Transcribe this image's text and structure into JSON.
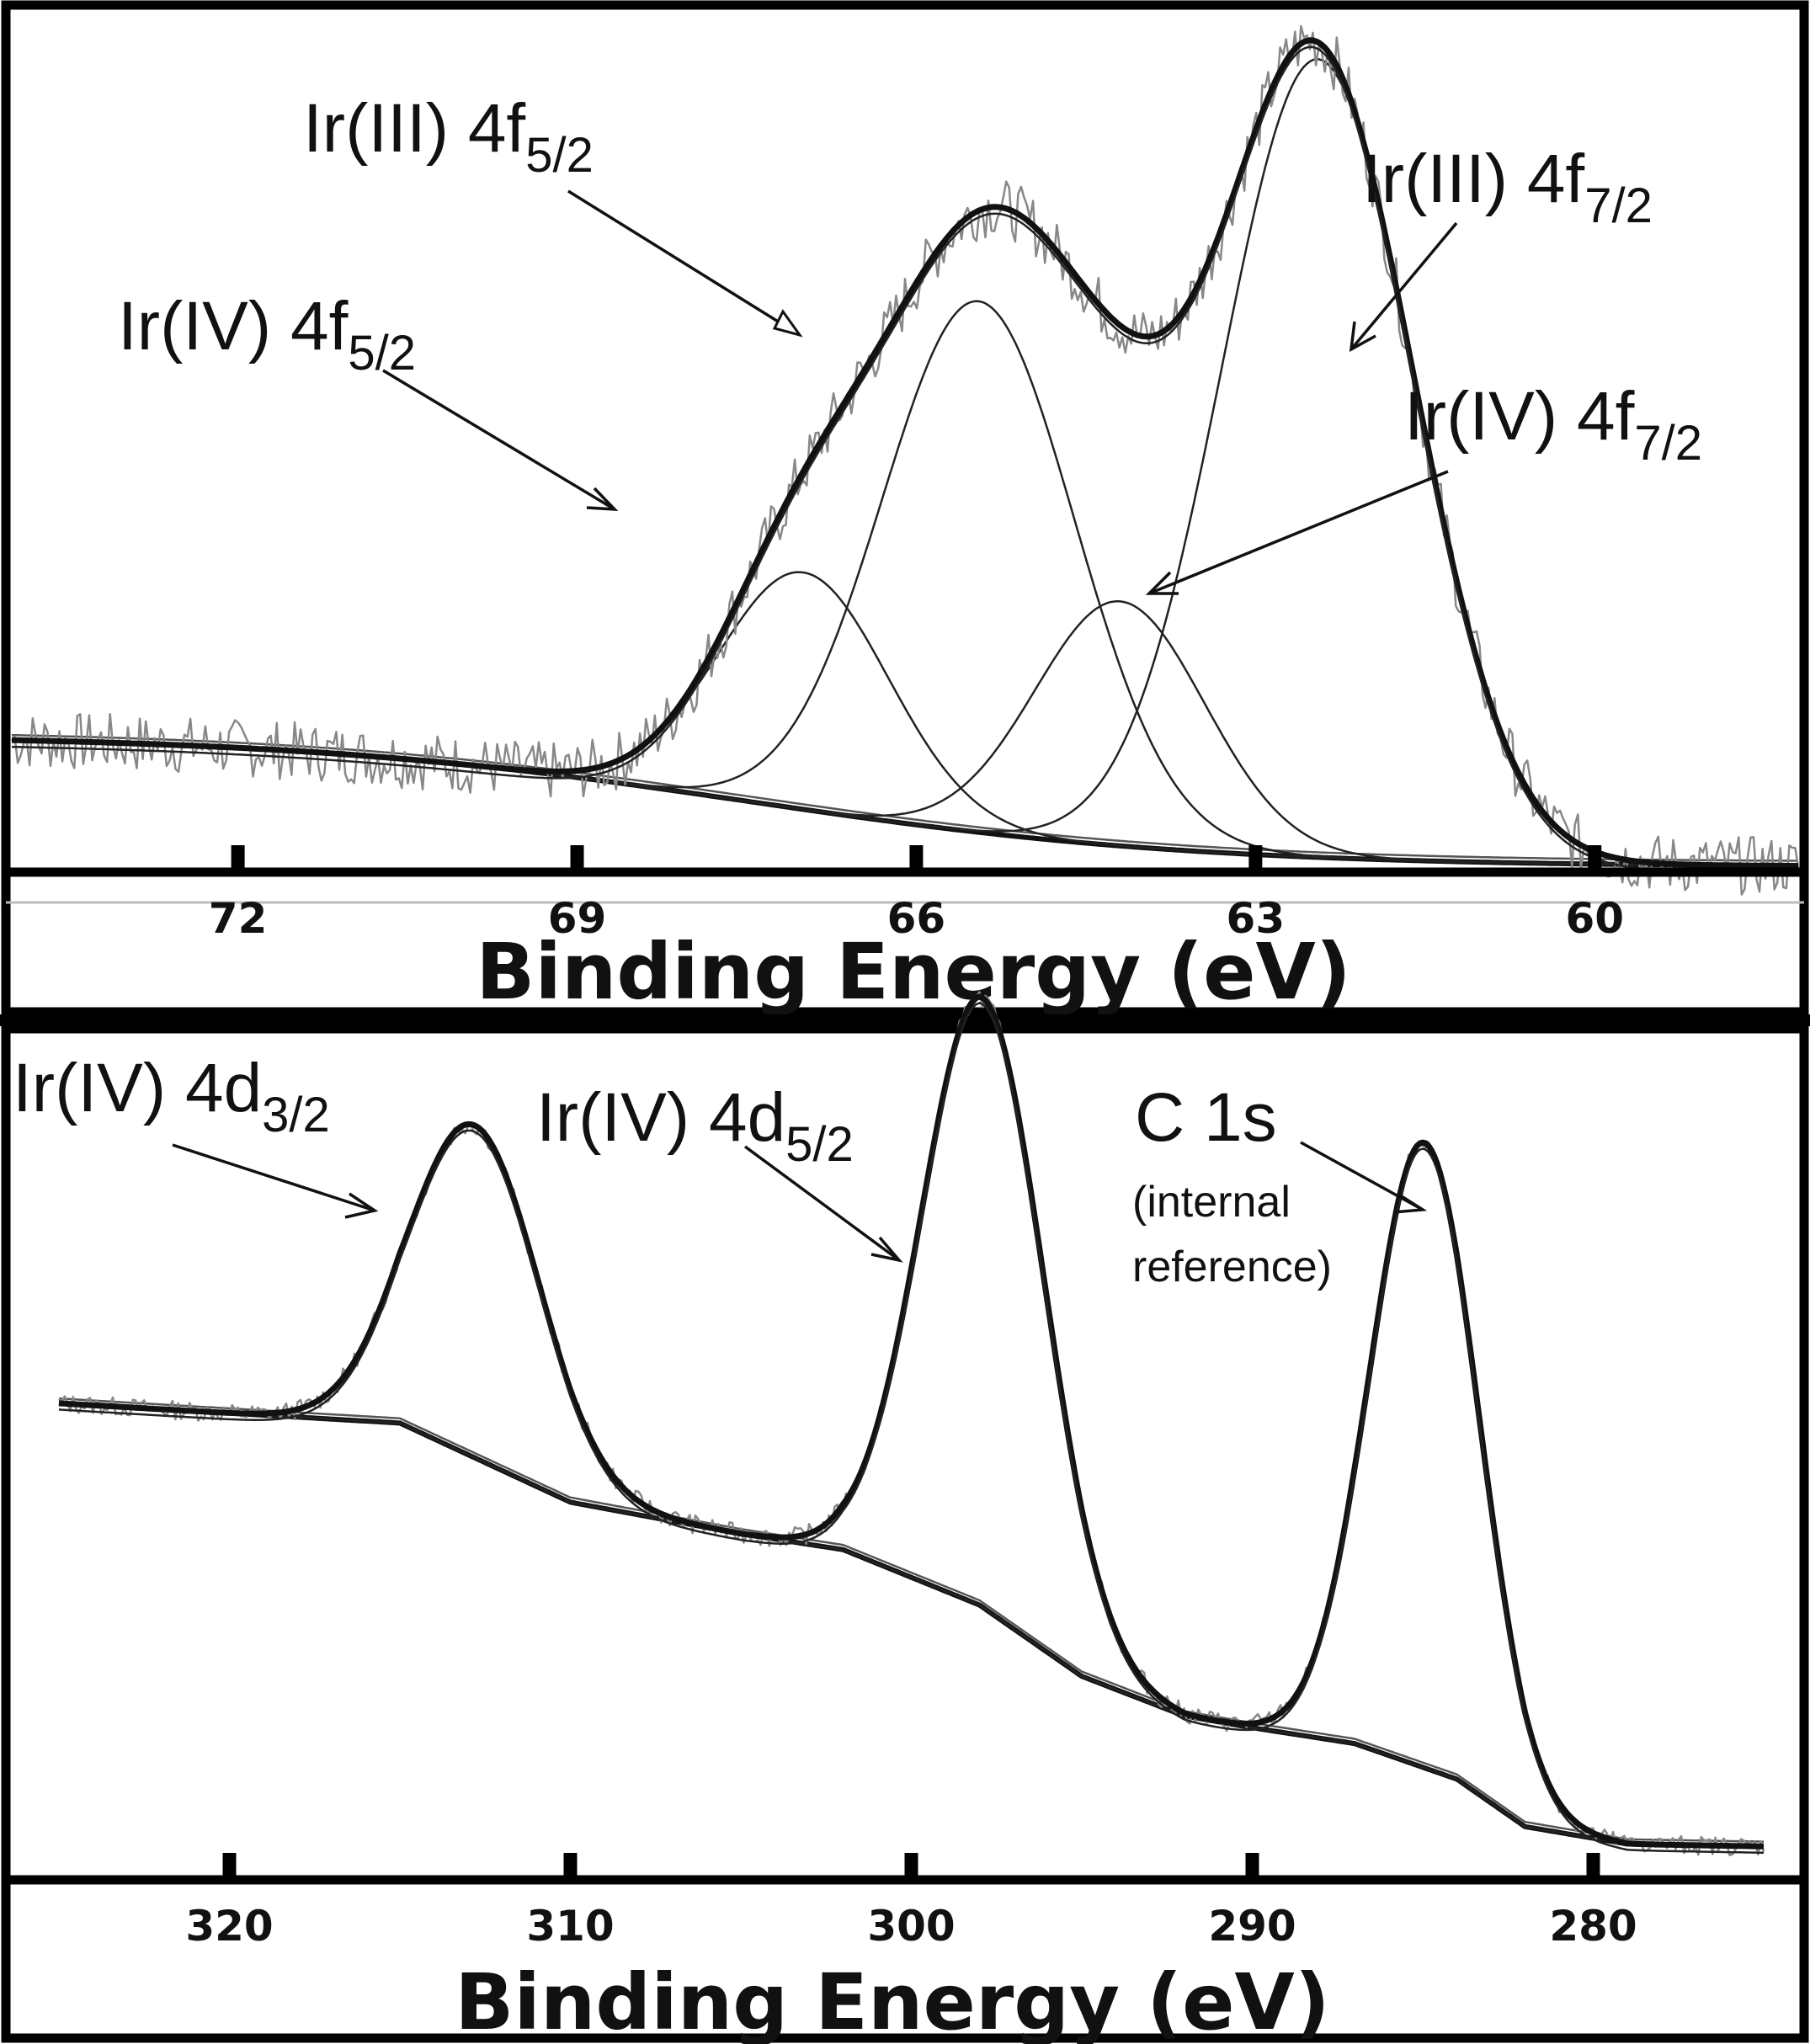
{
  "chart_data": [
    {
      "type": "line",
      "panel": "top",
      "title": "",
      "xlabel": "Binding Energy (eV)",
      "ylabel": "",
      "xlim": [
        74,
        58.2
      ],
      "ylim": [
        0,
        1
      ],
      "x_reversed": true,
      "xticks": [
        72,
        69,
        66,
        63,
        60
      ],
      "xtick_labels": [
        "72",
        "69",
        "66",
        "63",
        "60"
      ],
      "background": {
        "x0": 67.5,
        "width": 2.0,
        "high": 0.157,
        "low": 0.0
      },
      "components": [
        {
          "name": "Ir(IV) 4f5/2",
          "center": 67.0,
          "height": 0.282,
          "sigma": 0.75
        },
        {
          "name": "Ir(III) 4f5/2",
          "center": 65.45,
          "height": 0.632,
          "sigma": 0.85
        },
        {
          "name": "Ir(IV) 4f7/2",
          "center": 64.2,
          "height": 0.291,
          "sigma": 0.75
        },
        {
          "name": "Ir(III) 4f7/2",
          "center": 62.45,
          "height": 0.95,
          "sigma": 0.85
        }
      ],
      "annotations": [
        {
          "text": "Ir(III) 4f",
          "sub": "5/2"
        },
        {
          "text": "Ir(IV) 4f",
          "sub": "5/2"
        },
        {
          "text": "Ir(III) 4f",
          "sub": "7/2"
        },
        {
          "text": "Ir(IV) 4f",
          "sub": "7/2"
        }
      ]
    },
    {
      "type": "line",
      "panel": "bottom",
      "title": "",
      "xlabel": "Binding Energy (eV)",
      "ylabel": "",
      "xlim": [
        325,
        275
      ],
      "ylim": [
        0,
        1
      ],
      "x_reversed": true,
      "xticks": [
        320,
        310,
        300,
        290,
        280
      ],
      "xtick_labels": [
        "320",
        "310",
        "300",
        "290",
        "280"
      ],
      "background": {
        "x": [
          325,
          315,
          310,
          305,
          302,
          298,
          295,
          292,
          290,
          287,
          284,
          282,
          279,
          275
        ],
        "y": [
          0.565,
          0.54,
          0.44,
          0.4,
          0.38,
          0.31,
          0.22,
          0.17,
          0.155,
          0.135,
          0.09,
          0.03,
          0.008,
          0.005
        ]
      },
      "components": [
        {
          "name": "Ir(IV) 4d3/2",
          "center": 312.8,
          "height": 0.42,
          "sigma": 1.9
        },
        {
          "name": "Ir(IV) 4d5/2",
          "center": 297.9,
          "height": 0.77,
          "sigma": 1.8
        },
        {
          "name": "C 1s",
          "center": 284.95,
          "height": 0.79,
          "sigma": 1.6
        }
      ],
      "annotations": [
        {
          "text": "Ir(IV) 4d",
          "sub": "3/2"
        },
        {
          "text": "Ir(IV) 4d",
          "sub": "5/2"
        },
        {
          "text": "C 1s",
          "note1": "(internal",
          "note2": "reference)"
        }
      ]
    }
  ]
}
